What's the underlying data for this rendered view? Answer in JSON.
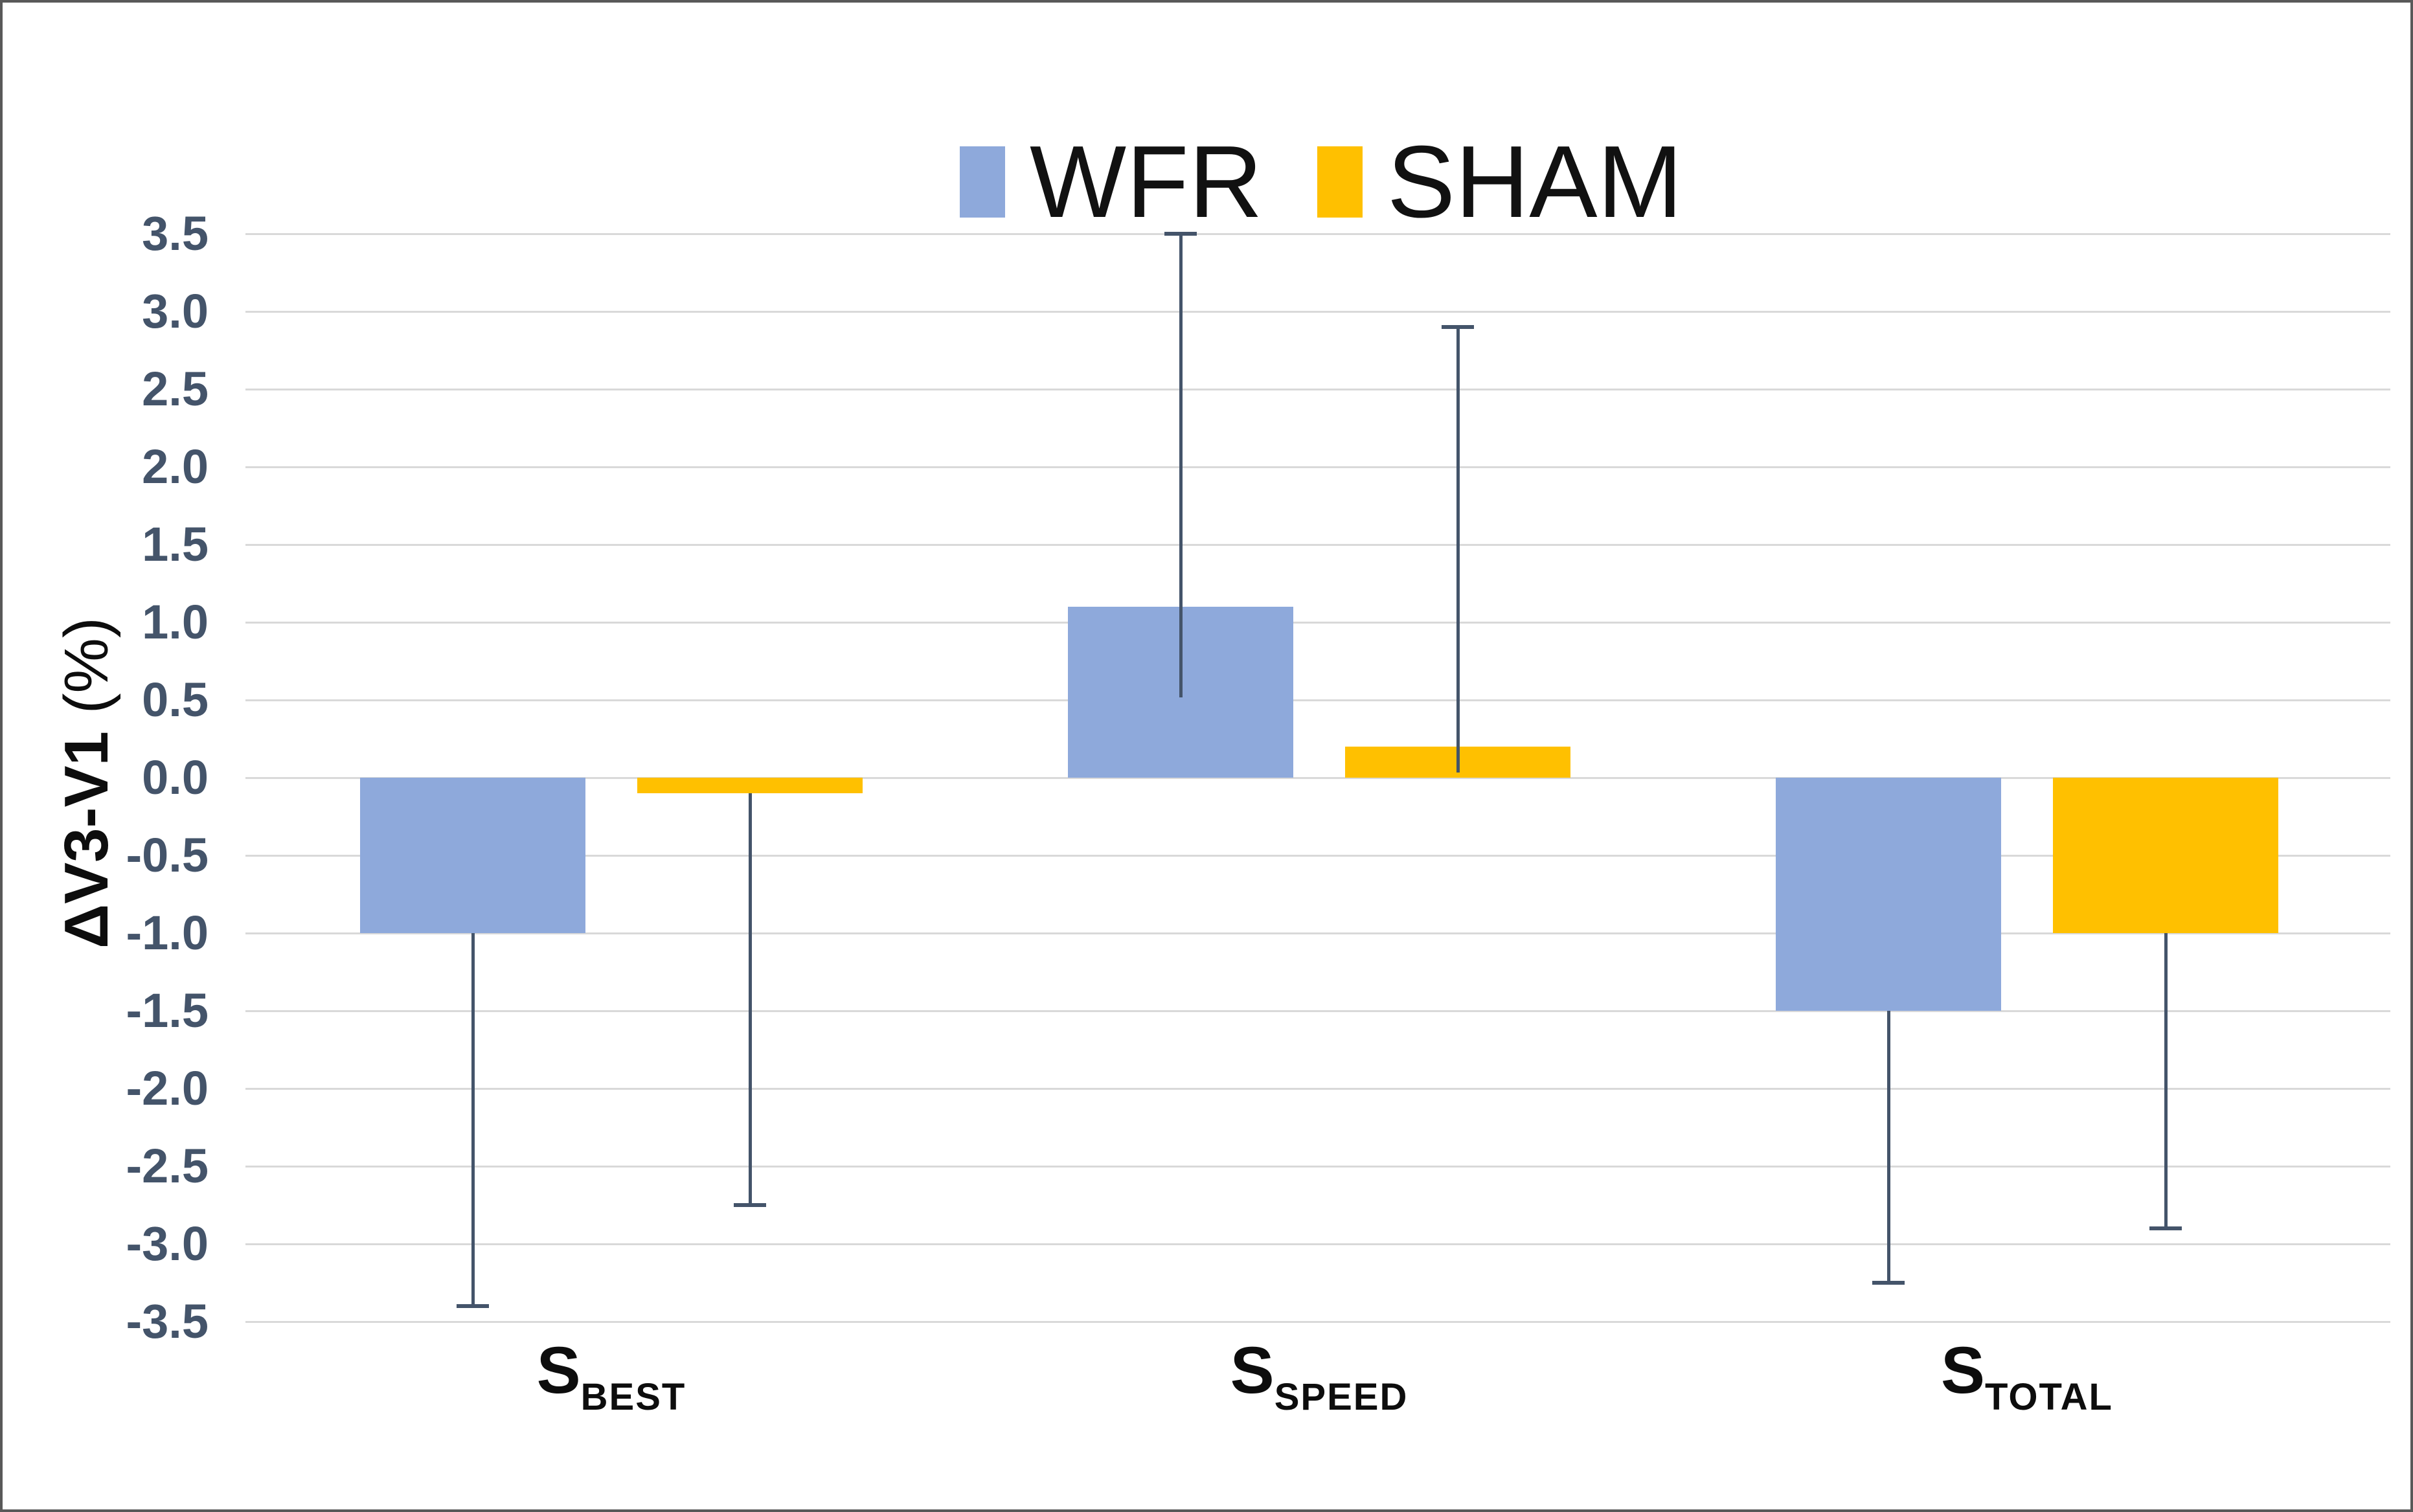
{
  "legend": {
    "items": [
      {
        "label": "WFR",
        "color": "#8EA9DB"
      },
      {
        "label": "SHAM",
        "color": "#FFC000"
      }
    ]
  },
  "y_axis": {
    "title_bold": "ΔV3-V1",
    "title_normal": " (%)",
    "ticks": [
      "3.5",
      "3.0",
      "2.5",
      "2.0",
      "1.5",
      "1.0",
      "0.5",
      "0.0",
      "-0.5",
      "-1.0",
      "-1.5",
      "-2.0",
      "-2.5",
      "-3.0",
      "-3.5"
    ]
  },
  "chart_data": {
    "type": "bar",
    "title": "",
    "xlabel": "",
    "ylabel": "ΔV3-V1 (%)",
    "ylim": [
      -3.5,
      3.5
    ],
    "ytick_step": 0.5,
    "grid": true,
    "legend_position": "top",
    "categories": [
      {
        "main": "S",
        "sub": "BEST"
      },
      {
        "main": "S",
        "sub": "SPEED"
      },
      {
        "main": "S",
        "sub": "TOTAL"
      }
    ],
    "series": [
      {
        "name": "WFR",
        "color": "#8EA9DB",
        "values": [
          -1.0,
          1.1,
          -1.5
        ],
        "error_bar_ends": [
          -3.4,
          3.5,
          -3.25
        ]
      },
      {
        "name": "SHAM",
        "color": "#FFC000",
        "values": [
          -0.1,
          0.2,
          -1.0
        ],
        "error_bar_ends": [
          -2.75,
          2.9,
          -2.9
        ]
      }
    ],
    "error_bar_color": "#44546A",
    "gridline_color": "#D9D9D9",
    "tick_label_color": "#44546A"
  }
}
